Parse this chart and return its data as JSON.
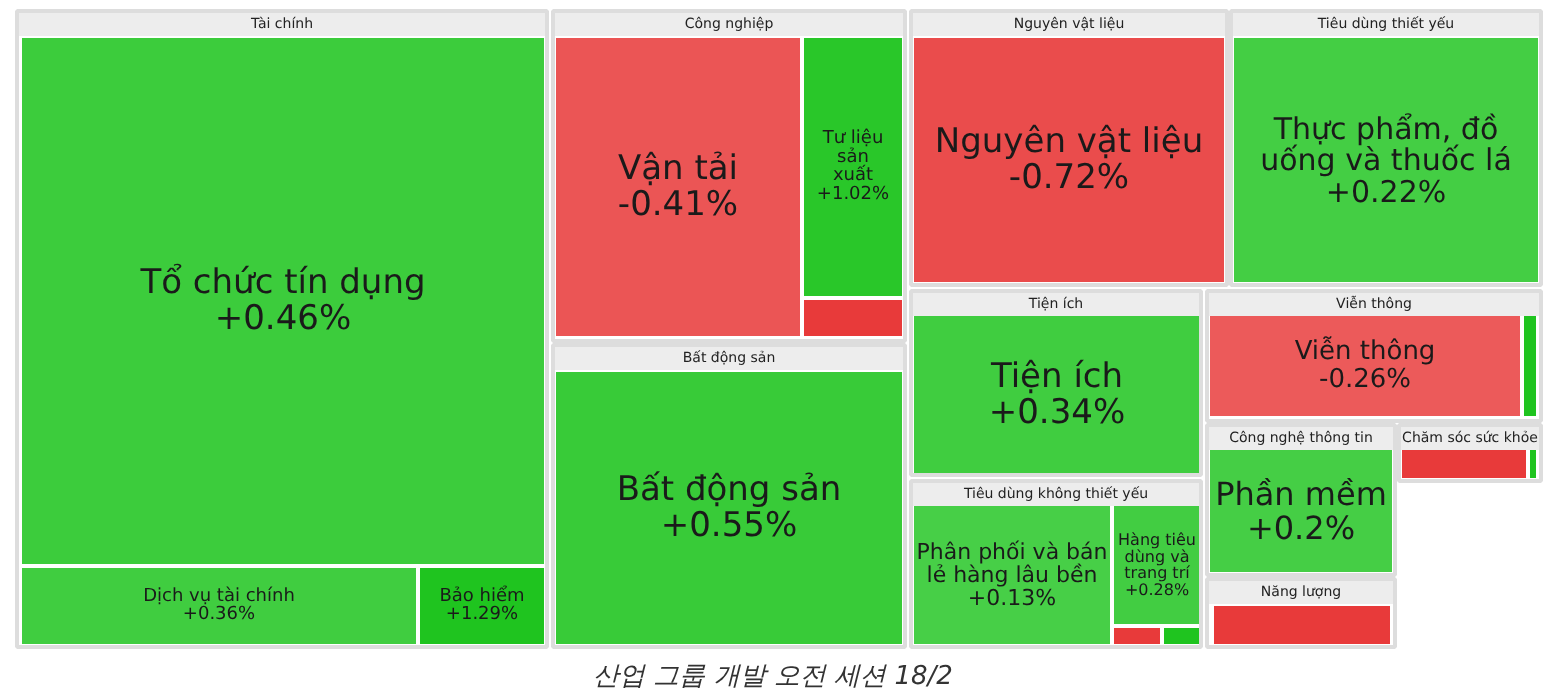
{
  "chart_data": {
    "type": "other",
    "title": "산업 그룹 개발 오전 세션 18/2",
    "annotations": [
      "Tài chính",
      "Công nghiệp",
      "Bất động sản",
      "Nguyên vật liệu",
      "Tiêu dùng thiết yếu",
      "Tiện ích",
      "Tiêu dùng không thiết yếu",
      "Viễn thông",
      "Công nghệ thông tin",
      "Năng lượng",
      "Chăm sóc sức khỏe"
    ],
    "categories": [
      "Tổ chức tín dụng",
      "Dịch vụ tài chính",
      "Bảo hiểm",
      "Vận tải",
      "Tư liệu sản xuất",
      null,
      "Bất động sản",
      "Nguyên vật liệu",
      "Thực phẩm, đồ uống và thuốc lá",
      "Tiện ích",
      "Phân phối và bán lẻ hàng lâu bền",
      "Hàng tiêu dùng và trang trí",
      null,
      null,
      "Viễn thông",
      null,
      "Phần mềm",
      null,
      null,
      null
    ],
    "values": [
      0.46,
      0.36,
      1.29,
      -0.41,
      1.02,
      null,
      0.55,
      -0.72,
      0.22,
      0.34,
      0.13,
      0.28,
      null,
      null,
      -0.26,
      null,
      0.2,
      null,
      null,
      null
    ],
    "value_labels": [
      "+0.46%",
      "+0.36%",
      "+1.29%",
      "-0.41%",
      "+1.02%",
      null,
      "+0.55%",
      "-0.72%",
      "+0.22%",
      "+0.34%",
      "+0.13%",
      "+0.28%",
      null,
      null,
      "-0.26%",
      null,
      "+0.2%",
      null,
      null,
      null
    ],
    "colors": [
      "#1fc41f",
      "#1fc41f",
      "#1fc41f",
      "#e83a3a",
      "#1fc41f",
      "#e83a3a",
      "#1fc41f",
      "#e83a3a",
      "#1fc41f",
      "#1fc41f",
      "#1fc41f",
      "#1fc41f",
      "#e83a3a",
      "#1fc41f",
      "#e83a3a",
      "#1fc41f",
      "#1fc41f",
      "#e83a3a",
      "#e83a3a",
      "#1fc41f"
    ]
  }
}
